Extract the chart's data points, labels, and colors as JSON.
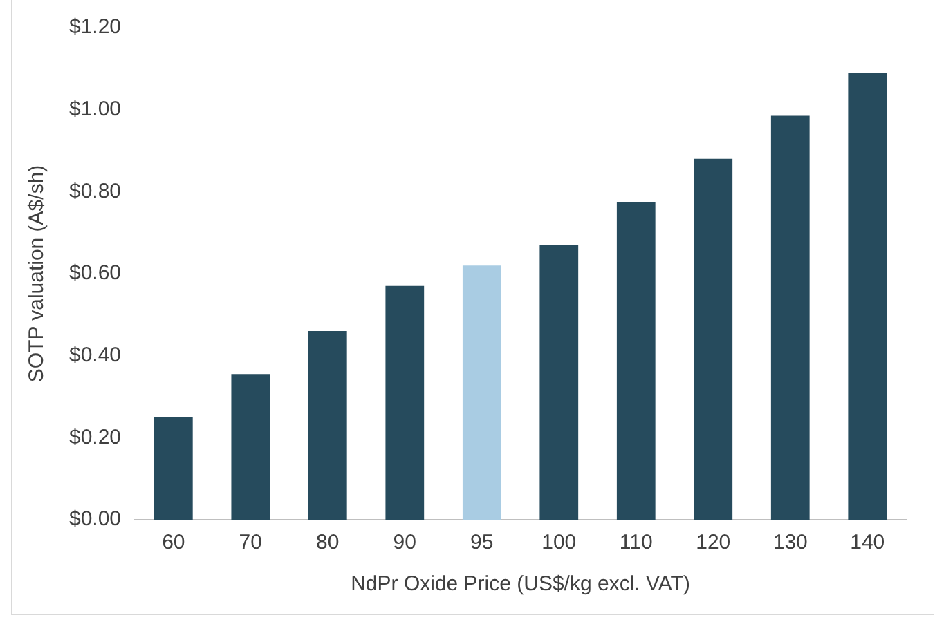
{
  "chart_data": {
    "type": "bar",
    "xlabel": "NdPr Oxide Price (US$/kg excl. VAT)",
    "ylabel": "SOTP valuation (A$/sh)",
    "categories": [
      "60",
      "70",
      "80",
      "90",
      "95",
      "100",
      "110",
      "120",
      "130",
      "140"
    ],
    "values": [
      0.25,
      0.355,
      0.46,
      0.57,
      0.62,
      0.67,
      0.775,
      0.88,
      0.985,
      1.09
    ],
    "colors": [
      "#264b5d",
      "#264b5d",
      "#264b5d",
      "#264b5d",
      "#a9cce3",
      "#264b5d",
      "#264b5d",
      "#264b5d",
      "#264b5d",
      "#264b5d"
    ],
    "ylim": [
      0,
      1.2
    ],
    "yticks": [
      {
        "value": 0,
        "label": "$0.00"
      },
      {
        "value": 0.2,
        "label": "$0.20"
      },
      {
        "value": 0.4,
        "label": "$0.40"
      },
      {
        "value": 0.6,
        "label": "$0.60"
      },
      {
        "value": 0.8,
        "label": "$0.80"
      },
      {
        "value": 1,
        "label": "$1.00"
      },
      {
        "value": 1.2,
        "label": "$1.20"
      }
    ],
    "grid": false,
    "legend": false
  }
}
